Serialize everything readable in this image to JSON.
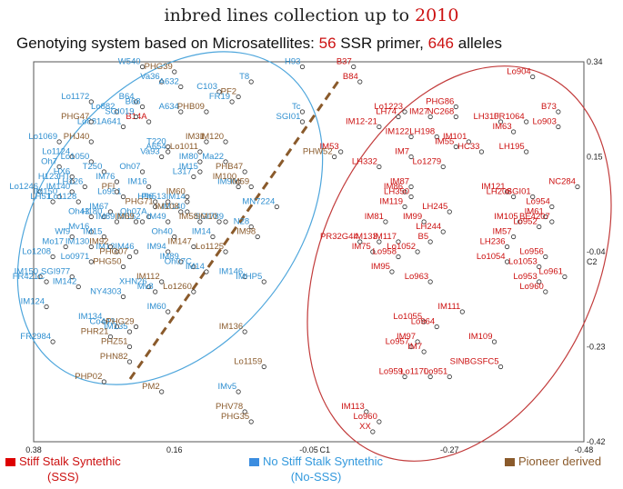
{
  "title": {
    "prefix": "inbred lines collection up to ",
    "year": "2010"
  },
  "subtitle": {
    "prefix": "Genotying system based on Microsatellites:",
    "primers": "56",
    "primer_label": "SSR primer,",
    "alleles": "646",
    "allele_label": "alleles"
  },
  "legend": {
    "sss": {
      "label": "Stiff Stalk Syntethic",
      "sub": "(SSS)",
      "color": "#dd0000"
    },
    "nosss": {
      "label": "No Stiff Stalk Syntethic",
      "sub": "(No-SSS)",
      "color": "#3b8de0"
    },
    "pioneer": {
      "label": "Pioneer derived",
      "color": "#8a5a2b"
    }
  },
  "chart_data": {
    "type": "scatter",
    "title": "inbred lines collection up to 2010",
    "xlabel": "C1",
    "ylabel": "C2",
    "xlim": [
      0.38,
      -0.48
    ],
    "ylim": [
      -0.42,
      0.34
    ],
    "x_ticks": [
      "0.38",
      "0.16",
      "-0.05",
      "-0.27",
      "-0.48"
    ],
    "y_ticks": [
      "0.34",
      "0.15",
      "-0.04",
      "-0.23",
      "-0.42"
    ],
    "colors": {
      "sss": "#cc1111",
      "nosss": "#2f8fd0",
      "pioneer": "#8a5a2b"
    },
    "groups": {
      "sss": [
        {
          "label": "Lo904",
          "x": -0.4,
          "y": 0.31
        },
        {
          "label": "B73",
          "x": -0.44,
          "y": 0.24
        },
        {
          "label": "Lo903",
          "x": -0.44,
          "y": 0.21
        },
        {
          "label": "PHG86",
          "x": -0.28,
          "y": 0.25
        },
        {
          "label": "NC268",
          "x": -0.28,
          "y": 0.23
        },
        {
          "label": "LH310",
          "x": -0.35,
          "y": 0.22
        },
        {
          "label": "FR1064",
          "x": -0.39,
          "y": 0.22
        },
        {
          "label": "Lo1223",
          "x": -0.2,
          "y": 0.24
        },
        {
          "label": "LH74",
          "x": -0.19,
          "y": 0.23
        },
        {
          "label": "IM27",
          "x": -0.24,
          "y": 0.23
        },
        {
          "label": "IM12-21",
          "x": -0.16,
          "y": 0.21
        },
        {
          "label": "IM63",
          "x": -0.37,
          "y": 0.2
        },
        {
          "label": "IM122",
          "x": -0.21,
          "y": 0.19
        },
        {
          "label": "LH198",
          "x": -0.25,
          "y": 0.19
        },
        {
          "label": "IM101",
          "x": -0.3,
          "y": 0.18
        },
        {
          "label": "IM55",
          "x": -0.28,
          "y": 0.17
        },
        {
          "label": "HC33",
          "x": -0.32,
          "y": 0.16
        },
        {
          "label": "LH195",
          "x": -0.39,
          "y": 0.16
        },
        {
          "label": "IM7",
          "x": -0.21,
          "y": 0.15
        },
        {
          "label": "Lo1279",
          "x": -0.26,
          "y": 0.13
        },
        {
          "label": "LH332",
          "x": -0.16,
          "y": 0.13
        },
        {
          "label": "IM87",
          "x": -0.21,
          "y": 0.09
        },
        {
          "label": "IM86",
          "x": -0.2,
          "y": 0.08
        },
        {
          "label": "IM121",
          "x": -0.36,
          "y": 0.08
        },
        {
          "label": "NC284",
          "x": -0.47,
          "y": 0.09
        },
        {
          "label": "LH350",
          "x": -0.21,
          "y": 0.07
        },
        {
          "label": "LH208",
          "x": -0.37,
          "y": 0.07
        },
        {
          "label": "SGI01",
          "x": -0.4,
          "y": 0.07
        },
        {
          "label": "IM119",
          "x": -0.2,
          "y": 0.05
        },
        {
          "label": "LH245",
          "x": -0.27,
          "y": 0.04
        },
        {
          "label": "Lo954",
          "x": -0.43,
          "y": 0.05
        },
        {
          "label": "IM99",
          "x": -0.23,
          "y": 0.02
        },
        {
          "label": "IM81",
          "x": -0.17,
          "y": 0.02
        },
        {
          "label": "IM61",
          "x": -0.42,
          "y": 0.03
        },
        {
          "label": "IM105",
          "x": -0.38,
          "y": 0.02
        },
        {
          "label": "BE4207",
          "x": -0.43,
          "y": 0.02
        },
        {
          "label": "Lo952",
          "x": -0.41,
          "y": 0.01
        },
        {
          "label": "LH244",
          "x": -0.26,
          "y": 0.0
        },
        {
          "label": "IM57",
          "x": -0.37,
          "y": -0.01
        },
        {
          "label": "IM117",
          "x": -0.19,
          "y": -0.02
        },
        {
          "label": "B5",
          "x": -0.24,
          "y": -0.02
        },
        {
          "label": "LH236",
          "x": -0.36,
          "y": -0.03
        },
        {
          "label": "IM75",
          "x": -0.15,
          "y": -0.04
        },
        {
          "label": "Lo1052",
          "x": -0.22,
          "y": -0.04
        },
        {
          "label": "Lo958",
          "x": -0.19,
          "y": -0.05
        },
        {
          "label": "Lo956",
          "x": -0.42,
          "y": -0.05
        },
        {
          "label": "Lo1054",
          "x": -0.36,
          "y": -0.06
        },
        {
          "label": "Lo1053",
          "x": -0.41,
          "y": -0.07
        },
        {
          "label": "IM95",
          "x": -0.18,
          "y": -0.08
        },
        {
          "label": "Lo961",
          "x": -0.45,
          "y": -0.09
        },
        {
          "label": "Lo953",
          "x": -0.41,
          "y": -0.1
        },
        {
          "label": "Lo963",
          "x": -0.24,
          "y": -0.1
        },
        {
          "label": "Lo960",
          "x": -0.42,
          "y": -0.12
        },
        {
          "label": "IM111",
          "x": -0.29,
          "y": -0.16
        },
        {
          "label": "Lo1055",
          "x": -0.23,
          "y": -0.18
        },
        {
          "label": "Lo964",
          "x": -0.25,
          "y": -0.19
        },
        {
          "label": "IM97",
          "x": -0.22,
          "y": -0.22
        },
        {
          "label": "IM109",
          "x": -0.34,
          "y": -0.22
        },
        {
          "label": "Lo957",
          "x": -0.21,
          "y": -0.23
        },
        {
          "label": "IM7",
          "x": -0.23,
          "y": -0.24
        },
        {
          "label": "SINBGSFC5",
          "x": -0.35,
          "y": -0.27
        },
        {
          "label": "Lo959",
          "x": -0.2,
          "y": -0.29
        },
        {
          "label": "Lo1170",
          "x": -0.24,
          "y": -0.29
        },
        {
          "label": "Lo951",
          "x": -0.27,
          "y": -0.29
        },
        {
          "label": "IM113",
          "x": -0.14,
          "y": -0.36
        },
        {
          "label": "Lo960",
          "x": -0.16,
          "y": -0.38
        },
        {
          "label": "XX",
          "x": -0.15,
          "y": -0.4
        },
        {
          "label": "B37",
          "x": -0.12,
          "y": 0.33
        },
        {
          "label": "B84",
          "x": -0.13,
          "y": 0.3
        },
        {
          "label": "PR32G44",
          "x": -0.13,
          "y": -0.02
        },
        {
          "label": "IM133",
          "x": -0.16,
          "y": -0.02
        },
        {
          "label": "B14A",
          "x": 0.2,
          "y": 0.22
        },
        {
          "label": "IM53",
          "x": -0.1,
          "y": 0.16
        }
      ],
      "nosss": [
        {
          "label": "H93",
          "x": -0.04,
          "y": 0.33
        },
        {
          "label": "W540",
          "x": 0.21,
          "y": 0.33
        },
        {
          "label": "T8",
          "x": 0.04,
          "y": 0.3
        },
        {
          "label": "Va36",
          "x": 0.18,
          "y": 0.3
        },
        {
          "label": "A632",
          "x": 0.15,
          "y": 0.29
        },
        {
          "label": "C103",
          "x": 0.09,
          "y": 0.28
        },
        {
          "label": "FR19",
          "x": 0.07,
          "y": 0.26
        },
        {
          "label": "Lo1172",
          "x": 0.29,
          "y": 0.26
        },
        {
          "label": "B64",
          "x": 0.22,
          "y": 0.26
        },
        {
          "label": "B68",
          "x": 0.21,
          "y": 0.25
        },
        {
          "label": "A634",
          "x": 0.15,
          "y": 0.24
        },
        {
          "label": "Lo882",
          "x": 0.25,
          "y": 0.24
        },
        {
          "label": "Tc",
          "x": -0.04,
          "y": 0.24
        },
        {
          "label": "SGI019",
          "x": 0.22,
          "y": 0.23
        },
        {
          "label": "SGI01",
          "x": -0.04,
          "y": 0.22
        },
        {
          "label": "Lo881A641",
          "x": 0.24,
          "y": 0.21
        },
        {
          "label": "T220",
          "x": 0.17,
          "y": 0.17
        },
        {
          "label": "Lo1069",
          "x": 0.34,
          "y": 0.18
        },
        {
          "label": "A654",
          "x": 0.17,
          "y": 0.16
        },
        {
          "label": "Va93",
          "x": 0.18,
          "y": 0.15
        },
        {
          "label": "Lo1124",
          "x": 0.32,
          "y": 0.15
        },
        {
          "label": "Lo1050",
          "x": 0.29,
          "y": 0.14
        },
        {
          "label": "IM80",
          "x": 0.12,
          "y": 0.14
        },
        {
          "label": "Oh7",
          "x": 0.34,
          "y": 0.13
        },
        {
          "label": "HX6",
          "x": 0.32,
          "y": 0.11
        },
        {
          "label": "T250",
          "x": 0.27,
          "y": 0.12
        },
        {
          "label": "Oh07",
          "x": 0.21,
          "y": 0.12
        },
        {
          "label": "IM15",
          "x": 0.12,
          "y": 0.12
        },
        {
          "label": "H123HT",
          "x": 0.32,
          "y": 0.1
        },
        {
          "label": "LH126",
          "x": 0.3,
          "y": 0.09
        },
        {
          "label": "IM140",
          "x": 0.32,
          "y": 0.08
        },
        {
          "label": "L317",
          "x": 0.13,
          "y": 0.11
        },
        {
          "label": "Lo1246",
          "x": 0.37,
          "y": 0.08
        },
        {
          "label": "IM76",
          "x": 0.25,
          "y": 0.1
        },
        {
          "label": "IM16",
          "x": 0.2,
          "y": 0.09
        },
        {
          "label": "IM150",
          "x": 0.34,
          "y": 0.07
        },
        {
          "label": "Lo951",
          "x": 0.24,
          "y": 0.07
        },
        {
          "label": "IM14",
          "x": 0.14,
          "y": 0.06
        },
        {
          "label": "LH51",
          "x": 0.35,
          "y": 0.06
        },
        {
          "label": "Lo1128",
          "x": 0.31,
          "y": 0.06
        },
        {
          "label": "H96",
          "x": 0.19,
          "y": 0.06
        },
        {
          "label": "Ph513",
          "x": 0.17,
          "y": 0.06
        },
        {
          "label": "IM140",
          "x": 0.14,
          "y": 0.04
        },
        {
          "label": "IM67",
          "x": 0.26,
          "y": 0.04
        },
        {
          "label": "Oh43",
          "x": 0.29,
          "y": 0.03
        },
        {
          "label": "H180",
          "x": 0.27,
          "y": 0.03
        },
        {
          "label": "IM89",
          "x": 0.25,
          "y": 0.02
        },
        {
          "label": "Oh07A",
          "x": 0.2,
          "y": 0.03
        },
        {
          "label": "IM152",
          "x": 0.21,
          "y": 0.02
        },
        {
          "label": "IM49",
          "x": 0.17,
          "y": 0.02
        },
        {
          "label": "Mv16",
          "x": 0.29,
          "y": 0.0
        },
        {
          "label": "IM15",
          "x": 0.27,
          "y": -0.01
        },
        {
          "label": "Wf9",
          "x": 0.32,
          "y": -0.01
        },
        {
          "label": "Oh40",
          "x": 0.16,
          "y": -0.01
        },
        {
          "label": "Mo17",
          "x": 0.33,
          "y": -0.03
        },
        {
          "label": "IM130",
          "x": 0.29,
          "y": -0.03
        },
        {
          "label": "IM13",
          "x": 0.25,
          "y": -0.04
        },
        {
          "label": "Lo1208",
          "x": 0.35,
          "y": -0.05
        },
        {
          "label": "IM46",
          "x": 0.22,
          "y": -0.04
        },
        {
          "label": "IM94",
          "x": 0.17,
          "y": -0.04
        },
        {
          "label": "Lo0971",
          "x": 0.29,
          "y": -0.06
        },
        {
          "label": "IM89",
          "x": 0.15,
          "y": -0.06
        },
        {
          "label": "Oh07C",
          "x": 0.13,
          "y": -0.07
        },
        {
          "label": "IM150",
          "x": 0.37,
          "y": -0.09
        },
        {
          "label": "FR421C",
          "x": 0.36,
          "y": -0.1
        },
        {
          "label": "SGI977",
          "x": 0.32,
          "y": -0.09
        },
        {
          "label": "IM142",
          "x": 0.31,
          "y": -0.11
        },
        {
          "label": "IM14",
          "x": 0.11,
          "y": -0.08
        },
        {
          "label": "IM146",
          "x": 0.05,
          "y": -0.09
        },
        {
          "label": "IMHP5",
          "x": 0.02,
          "y": -0.1
        },
        {
          "label": "NY4303",
          "x": 0.24,
          "y": -0.13
        },
        {
          "label": "IM124",
          "x": 0.36,
          "y": -0.15
        },
        {
          "label": "IM60",
          "x": 0.17,
          "y": -0.16
        },
        {
          "label": "IM134",
          "x": 0.27,
          "y": -0.18
        },
        {
          "label": "Co443",
          "x": 0.25,
          "y": -0.19
        },
        {
          "label": "IM135",
          "x": 0.23,
          "y": -0.2
        },
        {
          "label": "FR2984",
          "x": 0.35,
          "y": -0.22
        },
        {
          "label": "IMv5",
          "x": 0.06,
          "y": -0.32
        },
        {
          "label": "N28",
          "x": 0.04,
          "y": 0.01
        },
        {
          "label": "MN7224",
          "x": 0.0,
          "y": 0.05
        },
        {
          "label": "SGI789",
          "x": 0.08,
          "y": 0.02
        },
        {
          "label": "IM90",
          "x": 0.06,
          "y": 0.09
        },
        {
          "label": "Ma22",
          "x": 0.08,
          "y": 0.14
        },
        {
          "label": "IM14",
          "x": 0.1,
          "y": -0.01
        },
        {
          "label": "XHN26",
          "x": 0.2,
          "y": -0.11
        },
        {
          "label": "Mv8",
          "x": 0.19,
          "y": -0.12
        }
      ],
      "pioneer": [
        {
          "label": "PHG39",
          "x": 0.16,
          "y": 0.32
        },
        {
          "label": "PF2",
          "x": 0.06,
          "y": 0.27
        },
        {
          "label": "PHB09",
          "x": 0.11,
          "y": 0.24
        },
        {
          "label": "PHG47",
          "x": 0.29,
          "y": 0.22
        },
        {
          "label": "PHJ40",
          "x": 0.29,
          "y": 0.18
        },
        {
          "label": "IM31",
          "x": 0.11,
          "y": 0.18
        },
        {
          "label": "IM120",
          "x": 0.08,
          "y": 0.18
        },
        {
          "label": "PHW52",
          "x": -0.09,
          "y": 0.15
        },
        {
          "label": "Lo1011",
          "x": 0.12,
          "y": 0.16
        },
        {
          "label": "PHB47",
          "x": 0.05,
          "y": 0.12
        },
        {
          "label": "IM100",
          "x": 0.06,
          "y": 0.1
        },
        {
          "label": "IM59",
          "x": 0.04,
          "y": 0.09
        },
        {
          "label": "PFI",
          "x": 0.25,
          "y": 0.08
        },
        {
          "label": "IM60",
          "x": 0.14,
          "y": 0.07
        },
        {
          "label": "PHG71",
          "x": 0.19,
          "y": 0.05
        },
        {
          "label": "IM108",
          "x": 0.15,
          "y": 0.04
        },
        {
          "label": "IM10",
          "x": 0.09,
          "y": 0.02
        },
        {
          "label": "IM69",
          "x": 0.22,
          "y": 0.02
        },
        {
          "label": "IM58",
          "x": 0.12,
          "y": 0.02
        },
        {
          "label": "IM98",
          "x": 0.03,
          "y": -0.01
        },
        {
          "label": "IM92",
          "x": 0.26,
          "y": -0.03
        },
        {
          "label": "IM147",
          "x": 0.13,
          "y": -0.03
        },
        {
          "label": "Lo1125",
          "x": 0.08,
          "y": -0.04
        },
        {
          "label": "PHG07",
          "x": 0.23,
          "y": -0.05
        },
        {
          "label": "PHG50",
          "x": 0.24,
          "y": -0.07
        },
        {
          "label": "IM112",
          "x": 0.18,
          "y": -0.1
        },
        {
          "label": "Lo1260",
          "x": 0.13,
          "y": -0.12
        },
        {
          "label": "PHG29",
          "x": 0.22,
          "y": -0.19
        },
        {
          "label": "PHR21",
          "x": 0.26,
          "y": -0.21
        },
        {
          "label": "PHZ51",
          "x": 0.23,
          "y": -0.23
        },
        {
          "label": "PHN82",
          "x": 0.23,
          "y": -0.26
        },
        {
          "label": "IM136",
          "x": 0.05,
          "y": -0.2
        },
        {
          "label": "Lo1159",
          "x": 0.02,
          "y": -0.27
        },
        {
          "label": "PHP02",
          "x": 0.27,
          "y": -0.3
        },
        {
          "label": "PM2",
          "x": 0.18,
          "y": -0.32
        },
        {
          "label": "PHV78",
          "x": 0.05,
          "y": -0.36
        },
        {
          "label": "PHG35",
          "x": 0.04,
          "y": -0.38
        }
      ]
    }
  }
}
